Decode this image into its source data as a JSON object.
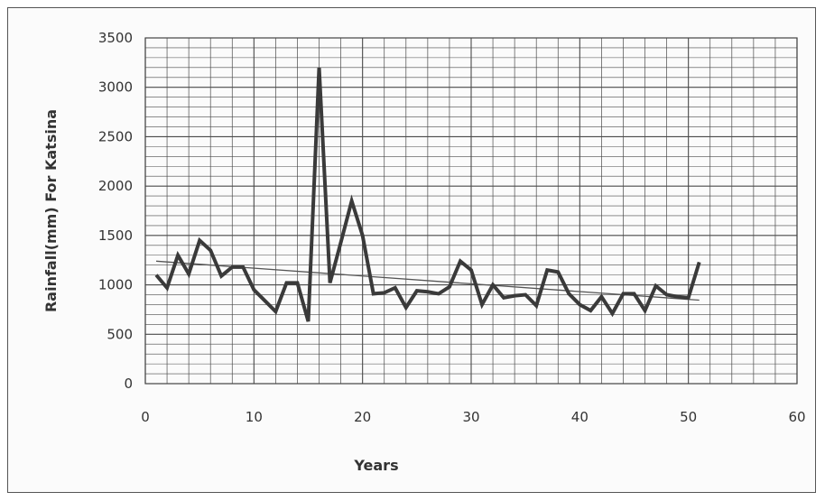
{
  "chart_data": {
    "type": "line",
    "title": "",
    "xlabel": "Years",
    "ylabel": "Rainfall(mm) For Katsina",
    "xlim": [
      0,
      60
    ],
    "ylim": [
      0,
      3500
    ],
    "xticks": [
      0,
      10,
      20,
      30,
      40,
      50,
      60
    ],
    "yticks": [
      0,
      500,
      1000,
      1500,
      2000,
      2500,
      3000,
      3500
    ],
    "grid": true,
    "legend": "none",
    "series": [
      {
        "x": [
          1,
          2,
          3,
          4,
          5,
          6,
          7,
          8,
          9,
          10,
          11,
          12,
          13,
          14,
          15,
          16,
          17,
          18,
          19,
          20,
          21,
          22,
          23,
          24,
          25,
          26,
          27,
          28,
          29,
          30,
          31,
          32,
          33,
          34,
          35,
          36,
          37,
          38,
          39,
          40,
          41,
          42,
          43,
          44,
          45,
          46,
          47,
          48,
          49,
          50,
          51
        ],
        "values": [
          1100,
          970,
          1300,
          1110,
          1450,
          1350,
          1090,
          1180,
          1180,
          950,
          840,
          730,
          1020,
          1020,
          630,
          3200,
          1020,
          1430,
          1850,
          1500,
          910,
          920,
          970,
          770,
          940,
          930,
          910,
          980,
          1240,
          1150,
          800,
          1000,
          870,
          890,
          900,
          790,
          1150,
          1130,
          910,
          800,
          740,
          880,
          710,
          910,
          910,
          740,
          990,
          900,
          880,
          870,
          1230
        ],
        "color": "#3a3a3a"
      },
      {
        "type": "linear-trend",
        "x": [
          1,
          51
        ],
        "values": [
          1240,
          845
        ],
        "color": "#555555"
      }
    ]
  }
}
